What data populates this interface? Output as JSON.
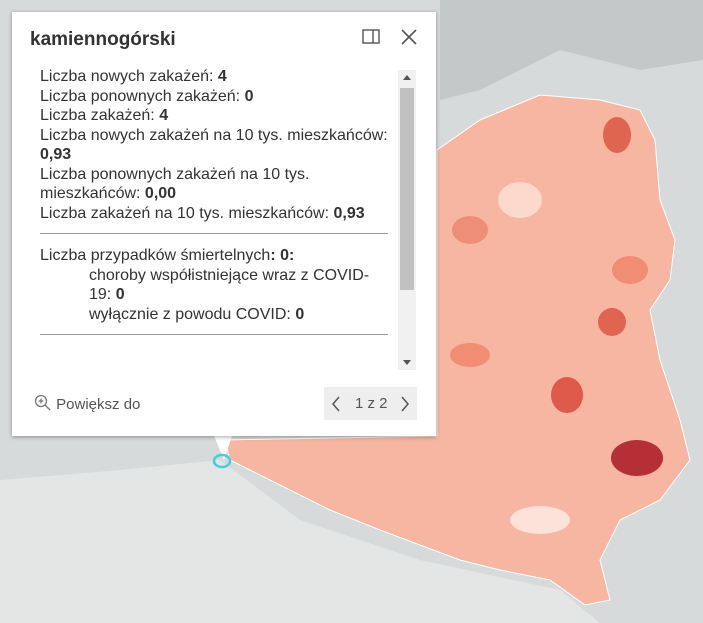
{
  "popup": {
    "title": "kamiennogórski",
    "fields": [
      {
        "label": "Liczba nowych zakażeń: ",
        "value": "4"
      },
      {
        "label": "Liczba ponownych zakażeń: ",
        "value": "0"
      },
      {
        "label": "Liczba zakażeń: ",
        "value": "4"
      },
      {
        "label": "Liczba nowych zakażeń na 10 tys. mieszkańców: ",
        "value": "0,93"
      },
      {
        "label": "Liczba ponownych zakażeń na 10 tys. mieszkańców: ",
        "value": "0,00"
      },
      {
        "label": "Liczba zakażeń na 10 tys. mieszkańców: ",
        "value": "0,93"
      }
    ],
    "deaths": {
      "label": "Liczba przypadków śmiertelnych",
      "value": ": 0:",
      "items": [
        {
          "label": "choroby współistniejące wraz z COVID-19: ",
          "value": "0"
        },
        {
          "label": "wyłącznie z powodu COVID: ",
          "value": "0"
        }
      ]
    },
    "zoom": "Powiększ do",
    "pager": "1 z 2"
  }
}
